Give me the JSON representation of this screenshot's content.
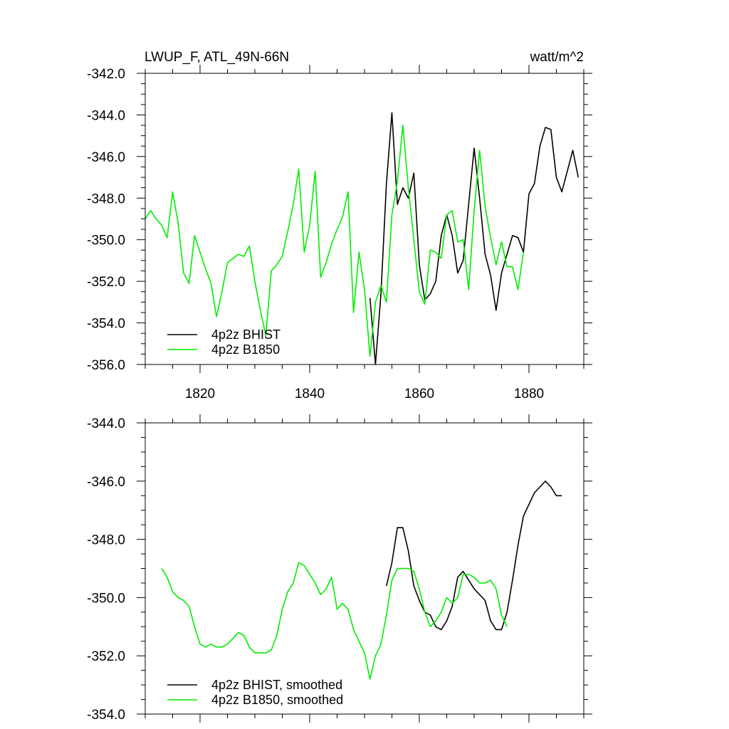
{
  "chart_data": [
    {
      "type": "line",
      "title": "LWUP_F, ATL_49N-66N",
      "units": "watt/m^2",
      "xlim": [
        1810,
        1890
      ],
      "ylim": [
        -356,
        -342
      ],
      "yticks": [
        "-342.0",
        "-344.0",
        "-346.0",
        "-348.0",
        "-350.0",
        "-352.0",
        "-354.0",
        "-356.0"
      ],
      "xticks": [
        "1820",
        "1840",
        "1860",
        "1880"
      ],
      "legend_position": "bottom-left",
      "series": [
        {
          "name": "4p2z BHIST",
          "color": "#000000",
          "x": [
            1851,
            1852,
            1853,
            1854,
            1855,
            1856,
            1857,
            1858,
            1859,
            1860,
            1861,
            1862,
            1863,
            1864,
            1865,
            1866,
            1867,
            1868,
            1869,
            1870,
            1871,
            1872,
            1873,
            1874,
            1875,
            1876,
            1877,
            1878,
            1879,
            1880,
            1881,
            1882,
            1883,
            1884,
            1885,
            1886,
            1887,
            1888,
            1889
          ],
          "y": [
            -352.8,
            -356.0,
            -352.6,
            -347.3,
            -343.9,
            -348.3,
            -347.5,
            -348.0,
            -346.8,
            -351.2,
            -352.9,
            -352.6,
            -352.0,
            -349.8,
            -348.8,
            -349.8,
            -351.6,
            -351.0,
            -348.3,
            -345.6,
            -348.0,
            -350.7,
            -351.7,
            -353.4,
            -351.6,
            -350.7,
            -349.8,
            -349.9,
            -350.6,
            -347.8,
            -347.3,
            -345.5,
            -344.6,
            -344.7,
            -347.0,
            -347.7,
            -346.7,
            -345.7,
            -347.0
          ]
        },
        {
          "name": "4p2z B1850",
          "color": "#00ee00",
          "x": [
            1810,
            1811,
            1812,
            1813,
            1814,
            1815,
            1816,
            1817,
            1818,
            1819,
            1820,
            1821,
            1822,
            1823,
            1824,
            1825,
            1826,
            1827,
            1828,
            1829,
            1830,
            1831,
            1832,
            1833,
            1834,
            1835,
            1836,
            1837,
            1838,
            1839,
            1840,
            1841,
            1842,
            1843,
            1844,
            1845,
            1846,
            1847,
            1848,
            1849,
            1850,
            1851,
            1852,
            1853,
            1854,
            1855,
            1856,
            1857,
            1858,
            1859,
            1860,
            1861,
            1862,
            1863,
            1864,
            1865,
            1866,
            1867,
            1868,
            1869,
            1870,
            1871,
            1872,
            1873,
            1874,
            1875,
            1876,
            1877,
            1878,
            1879
          ],
          "y": [
            -349.0,
            -348.6,
            -349.0,
            -349.3,
            -349.9,
            -347.7,
            -349.2,
            -351.6,
            -352.1,
            -349.8,
            -350.6,
            -351.4,
            -352.1,
            -353.7,
            -352.5,
            -351.1,
            -350.9,
            -350.7,
            -350.8,
            -350.3,
            -352.0,
            -353.4,
            -354.6,
            -351.5,
            -351.2,
            -350.8,
            -349.6,
            -348.3,
            -346.6,
            -350.6,
            -349.3,
            -346.7,
            -351.8,
            -351.1,
            -350.2,
            -349.5,
            -348.9,
            -347.7,
            -353.5,
            -350.6,
            -352.4,
            -355.6,
            -353.0,
            -352.2,
            -353.0,
            -348.8,
            -347.2,
            -344.5,
            -347.5,
            -350.0,
            -352.5,
            -353.1,
            -350.5,
            -350.6,
            -350.9,
            -348.8,
            -348.6,
            -350.1,
            -350.0,
            -352.4,
            -348.6,
            -345.7,
            -348.4,
            -349.9,
            -351.2,
            -350.1,
            -351.3,
            -351.3,
            -352.4,
            -350.6
          ]
        }
      ]
    },
    {
      "type": "line",
      "title": "",
      "xlim": [
        1810,
        1890
      ],
      "ylim": [
        -354,
        -344
      ],
      "yticks": [
        "-344.0",
        "-346.0",
        "-348.0",
        "-350.0",
        "-352.0",
        "-354.0"
      ],
      "legend_position": "bottom-left",
      "series": [
        {
          "name": "4p2z BHIST, smoothed",
          "color": "#000000",
          "x": [
            1854,
            1855,
            1856,
            1857,
            1858,
            1859,
            1860,
            1861,
            1862,
            1863,
            1864,
            1865,
            1866,
            1867,
            1868,
            1869,
            1870,
            1871,
            1872,
            1873,
            1874,
            1875,
            1876,
            1877,
            1878,
            1879,
            1880,
            1881,
            1882,
            1883,
            1884,
            1885,
            1886
          ],
          "y": [
            -349.6,
            -348.8,
            -347.6,
            -347.6,
            -348.4,
            -349.6,
            -350.1,
            -350.5,
            -350.6,
            -351.0,
            -351.1,
            -350.8,
            -350.3,
            -349.3,
            -349.1,
            -349.4,
            -349.7,
            -349.9,
            -350.1,
            -350.8,
            -351.1,
            -351.1,
            -350.5,
            -349.4,
            -348.2,
            -347.2,
            -346.8,
            -346.4,
            -346.2,
            -346.0,
            -346.2,
            -346.5,
            -346.5
          ]
        },
        {
          "name": "4p2z B1850, smoothed",
          "color": "#00ee00",
          "x": [
            1813,
            1814,
            1815,
            1816,
            1817,
            1818,
            1819,
            1820,
            1821,
            1822,
            1823,
            1824,
            1825,
            1826,
            1827,
            1828,
            1829,
            1830,
            1831,
            1832,
            1833,
            1834,
            1835,
            1836,
            1837,
            1838,
            1839,
            1840,
            1841,
            1842,
            1843,
            1844,
            1845,
            1846,
            1847,
            1848,
            1849,
            1850,
            1851,
            1852,
            1853,
            1854,
            1855,
            1856,
            1857,
            1858,
            1859,
            1860,
            1861,
            1862,
            1863,
            1864,
            1865,
            1866,
            1867,
            1868,
            1869,
            1870,
            1871,
            1872,
            1873,
            1874,
            1875,
            1876
          ],
          "y": [
            -349.0,
            -349.3,
            -349.8,
            -350.0,
            -350.1,
            -350.3,
            -351.0,
            -351.6,
            -351.7,
            -351.6,
            -351.7,
            -351.7,
            -351.6,
            -351.4,
            -351.2,
            -351.3,
            -351.7,
            -351.9,
            -351.9,
            -351.9,
            -351.8,
            -351.3,
            -350.4,
            -349.8,
            -349.5,
            -348.8,
            -348.9,
            -349.2,
            -349.5,
            -349.9,
            -349.7,
            -349.3,
            -350.4,
            -350.2,
            -350.4,
            -351.1,
            -351.5,
            -351.9,
            -352.8,
            -352.0,
            -351.6,
            -350.6,
            -349.4,
            -349.0,
            -349.0,
            -349.0,
            -349.1,
            -349.7,
            -350.5,
            -351.0,
            -350.8,
            -350.5,
            -350.0,
            -350.2,
            -350.0,
            -349.2,
            -349.2,
            -349.3,
            -349.5,
            -349.5,
            -349.4,
            -349.7,
            -350.6,
            -351.0
          ]
        }
      ]
    }
  ]
}
